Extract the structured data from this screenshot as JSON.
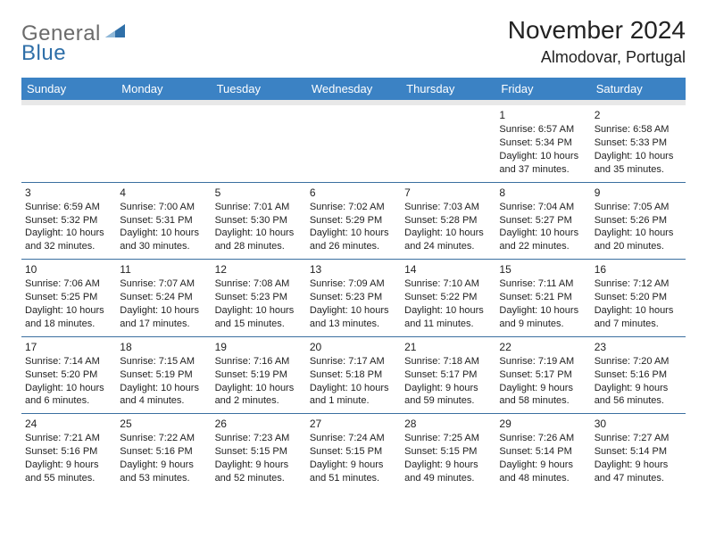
{
  "logo": {
    "word1": "General",
    "word2": "Blue"
  },
  "title": "November 2024",
  "location": "Almodovar, Portugal",
  "colors": {
    "header_bg": "#3b82c4",
    "header_text": "#ffffff",
    "row_border": "#3b6fa0",
    "spacer_bg": "#e8e8e8",
    "logo_gray": "#6b6b6b",
    "logo_blue": "#2f6fa8"
  },
  "weekdays": [
    "Sunday",
    "Monday",
    "Tuesday",
    "Wednesday",
    "Thursday",
    "Friday",
    "Saturday"
  ],
  "weeks": [
    [
      null,
      null,
      null,
      null,
      null,
      {
        "n": "1",
        "sr": "Sunrise: 6:57 AM",
        "ss": "Sunset: 5:34 PM",
        "d1": "Daylight: 10 hours",
        "d2": "and 37 minutes."
      },
      {
        "n": "2",
        "sr": "Sunrise: 6:58 AM",
        "ss": "Sunset: 5:33 PM",
        "d1": "Daylight: 10 hours",
        "d2": "and 35 minutes."
      }
    ],
    [
      {
        "n": "3",
        "sr": "Sunrise: 6:59 AM",
        "ss": "Sunset: 5:32 PM",
        "d1": "Daylight: 10 hours",
        "d2": "and 32 minutes."
      },
      {
        "n": "4",
        "sr": "Sunrise: 7:00 AM",
        "ss": "Sunset: 5:31 PM",
        "d1": "Daylight: 10 hours",
        "d2": "and 30 minutes."
      },
      {
        "n": "5",
        "sr": "Sunrise: 7:01 AM",
        "ss": "Sunset: 5:30 PM",
        "d1": "Daylight: 10 hours",
        "d2": "and 28 minutes."
      },
      {
        "n": "6",
        "sr": "Sunrise: 7:02 AM",
        "ss": "Sunset: 5:29 PM",
        "d1": "Daylight: 10 hours",
        "d2": "and 26 minutes."
      },
      {
        "n": "7",
        "sr": "Sunrise: 7:03 AM",
        "ss": "Sunset: 5:28 PM",
        "d1": "Daylight: 10 hours",
        "d2": "and 24 minutes."
      },
      {
        "n": "8",
        "sr": "Sunrise: 7:04 AM",
        "ss": "Sunset: 5:27 PM",
        "d1": "Daylight: 10 hours",
        "d2": "and 22 minutes."
      },
      {
        "n": "9",
        "sr": "Sunrise: 7:05 AM",
        "ss": "Sunset: 5:26 PM",
        "d1": "Daylight: 10 hours",
        "d2": "and 20 minutes."
      }
    ],
    [
      {
        "n": "10",
        "sr": "Sunrise: 7:06 AM",
        "ss": "Sunset: 5:25 PM",
        "d1": "Daylight: 10 hours",
        "d2": "and 18 minutes."
      },
      {
        "n": "11",
        "sr": "Sunrise: 7:07 AM",
        "ss": "Sunset: 5:24 PM",
        "d1": "Daylight: 10 hours",
        "d2": "and 17 minutes."
      },
      {
        "n": "12",
        "sr": "Sunrise: 7:08 AM",
        "ss": "Sunset: 5:23 PM",
        "d1": "Daylight: 10 hours",
        "d2": "and 15 minutes."
      },
      {
        "n": "13",
        "sr": "Sunrise: 7:09 AM",
        "ss": "Sunset: 5:23 PM",
        "d1": "Daylight: 10 hours",
        "d2": "and 13 minutes."
      },
      {
        "n": "14",
        "sr": "Sunrise: 7:10 AM",
        "ss": "Sunset: 5:22 PM",
        "d1": "Daylight: 10 hours",
        "d2": "and 11 minutes."
      },
      {
        "n": "15",
        "sr": "Sunrise: 7:11 AM",
        "ss": "Sunset: 5:21 PM",
        "d1": "Daylight: 10 hours",
        "d2": "and 9 minutes."
      },
      {
        "n": "16",
        "sr": "Sunrise: 7:12 AM",
        "ss": "Sunset: 5:20 PM",
        "d1": "Daylight: 10 hours",
        "d2": "and 7 minutes."
      }
    ],
    [
      {
        "n": "17",
        "sr": "Sunrise: 7:14 AM",
        "ss": "Sunset: 5:20 PM",
        "d1": "Daylight: 10 hours",
        "d2": "and 6 minutes."
      },
      {
        "n": "18",
        "sr": "Sunrise: 7:15 AM",
        "ss": "Sunset: 5:19 PM",
        "d1": "Daylight: 10 hours",
        "d2": "and 4 minutes."
      },
      {
        "n": "19",
        "sr": "Sunrise: 7:16 AM",
        "ss": "Sunset: 5:19 PM",
        "d1": "Daylight: 10 hours",
        "d2": "and 2 minutes."
      },
      {
        "n": "20",
        "sr": "Sunrise: 7:17 AM",
        "ss": "Sunset: 5:18 PM",
        "d1": "Daylight: 10 hours",
        "d2": "and 1 minute."
      },
      {
        "n": "21",
        "sr": "Sunrise: 7:18 AM",
        "ss": "Sunset: 5:17 PM",
        "d1": "Daylight: 9 hours",
        "d2": "and 59 minutes."
      },
      {
        "n": "22",
        "sr": "Sunrise: 7:19 AM",
        "ss": "Sunset: 5:17 PM",
        "d1": "Daylight: 9 hours",
        "d2": "and 58 minutes."
      },
      {
        "n": "23",
        "sr": "Sunrise: 7:20 AM",
        "ss": "Sunset: 5:16 PM",
        "d1": "Daylight: 9 hours",
        "d2": "and 56 minutes."
      }
    ],
    [
      {
        "n": "24",
        "sr": "Sunrise: 7:21 AM",
        "ss": "Sunset: 5:16 PM",
        "d1": "Daylight: 9 hours",
        "d2": "and 55 minutes."
      },
      {
        "n": "25",
        "sr": "Sunrise: 7:22 AM",
        "ss": "Sunset: 5:16 PM",
        "d1": "Daylight: 9 hours",
        "d2": "and 53 minutes."
      },
      {
        "n": "26",
        "sr": "Sunrise: 7:23 AM",
        "ss": "Sunset: 5:15 PM",
        "d1": "Daylight: 9 hours",
        "d2": "and 52 minutes."
      },
      {
        "n": "27",
        "sr": "Sunrise: 7:24 AM",
        "ss": "Sunset: 5:15 PM",
        "d1": "Daylight: 9 hours",
        "d2": "and 51 minutes."
      },
      {
        "n": "28",
        "sr": "Sunrise: 7:25 AM",
        "ss": "Sunset: 5:15 PM",
        "d1": "Daylight: 9 hours",
        "d2": "and 49 minutes."
      },
      {
        "n": "29",
        "sr": "Sunrise: 7:26 AM",
        "ss": "Sunset: 5:14 PM",
        "d1": "Daylight: 9 hours",
        "d2": "and 48 minutes."
      },
      {
        "n": "30",
        "sr": "Sunrise: 7:27 AM",
        "ss": "Sunset: 5:14 PM",
        "d1": "Daylight: 9 hours",
        "d2": "and 47 minutes."
      }
    ]
  ]
}
